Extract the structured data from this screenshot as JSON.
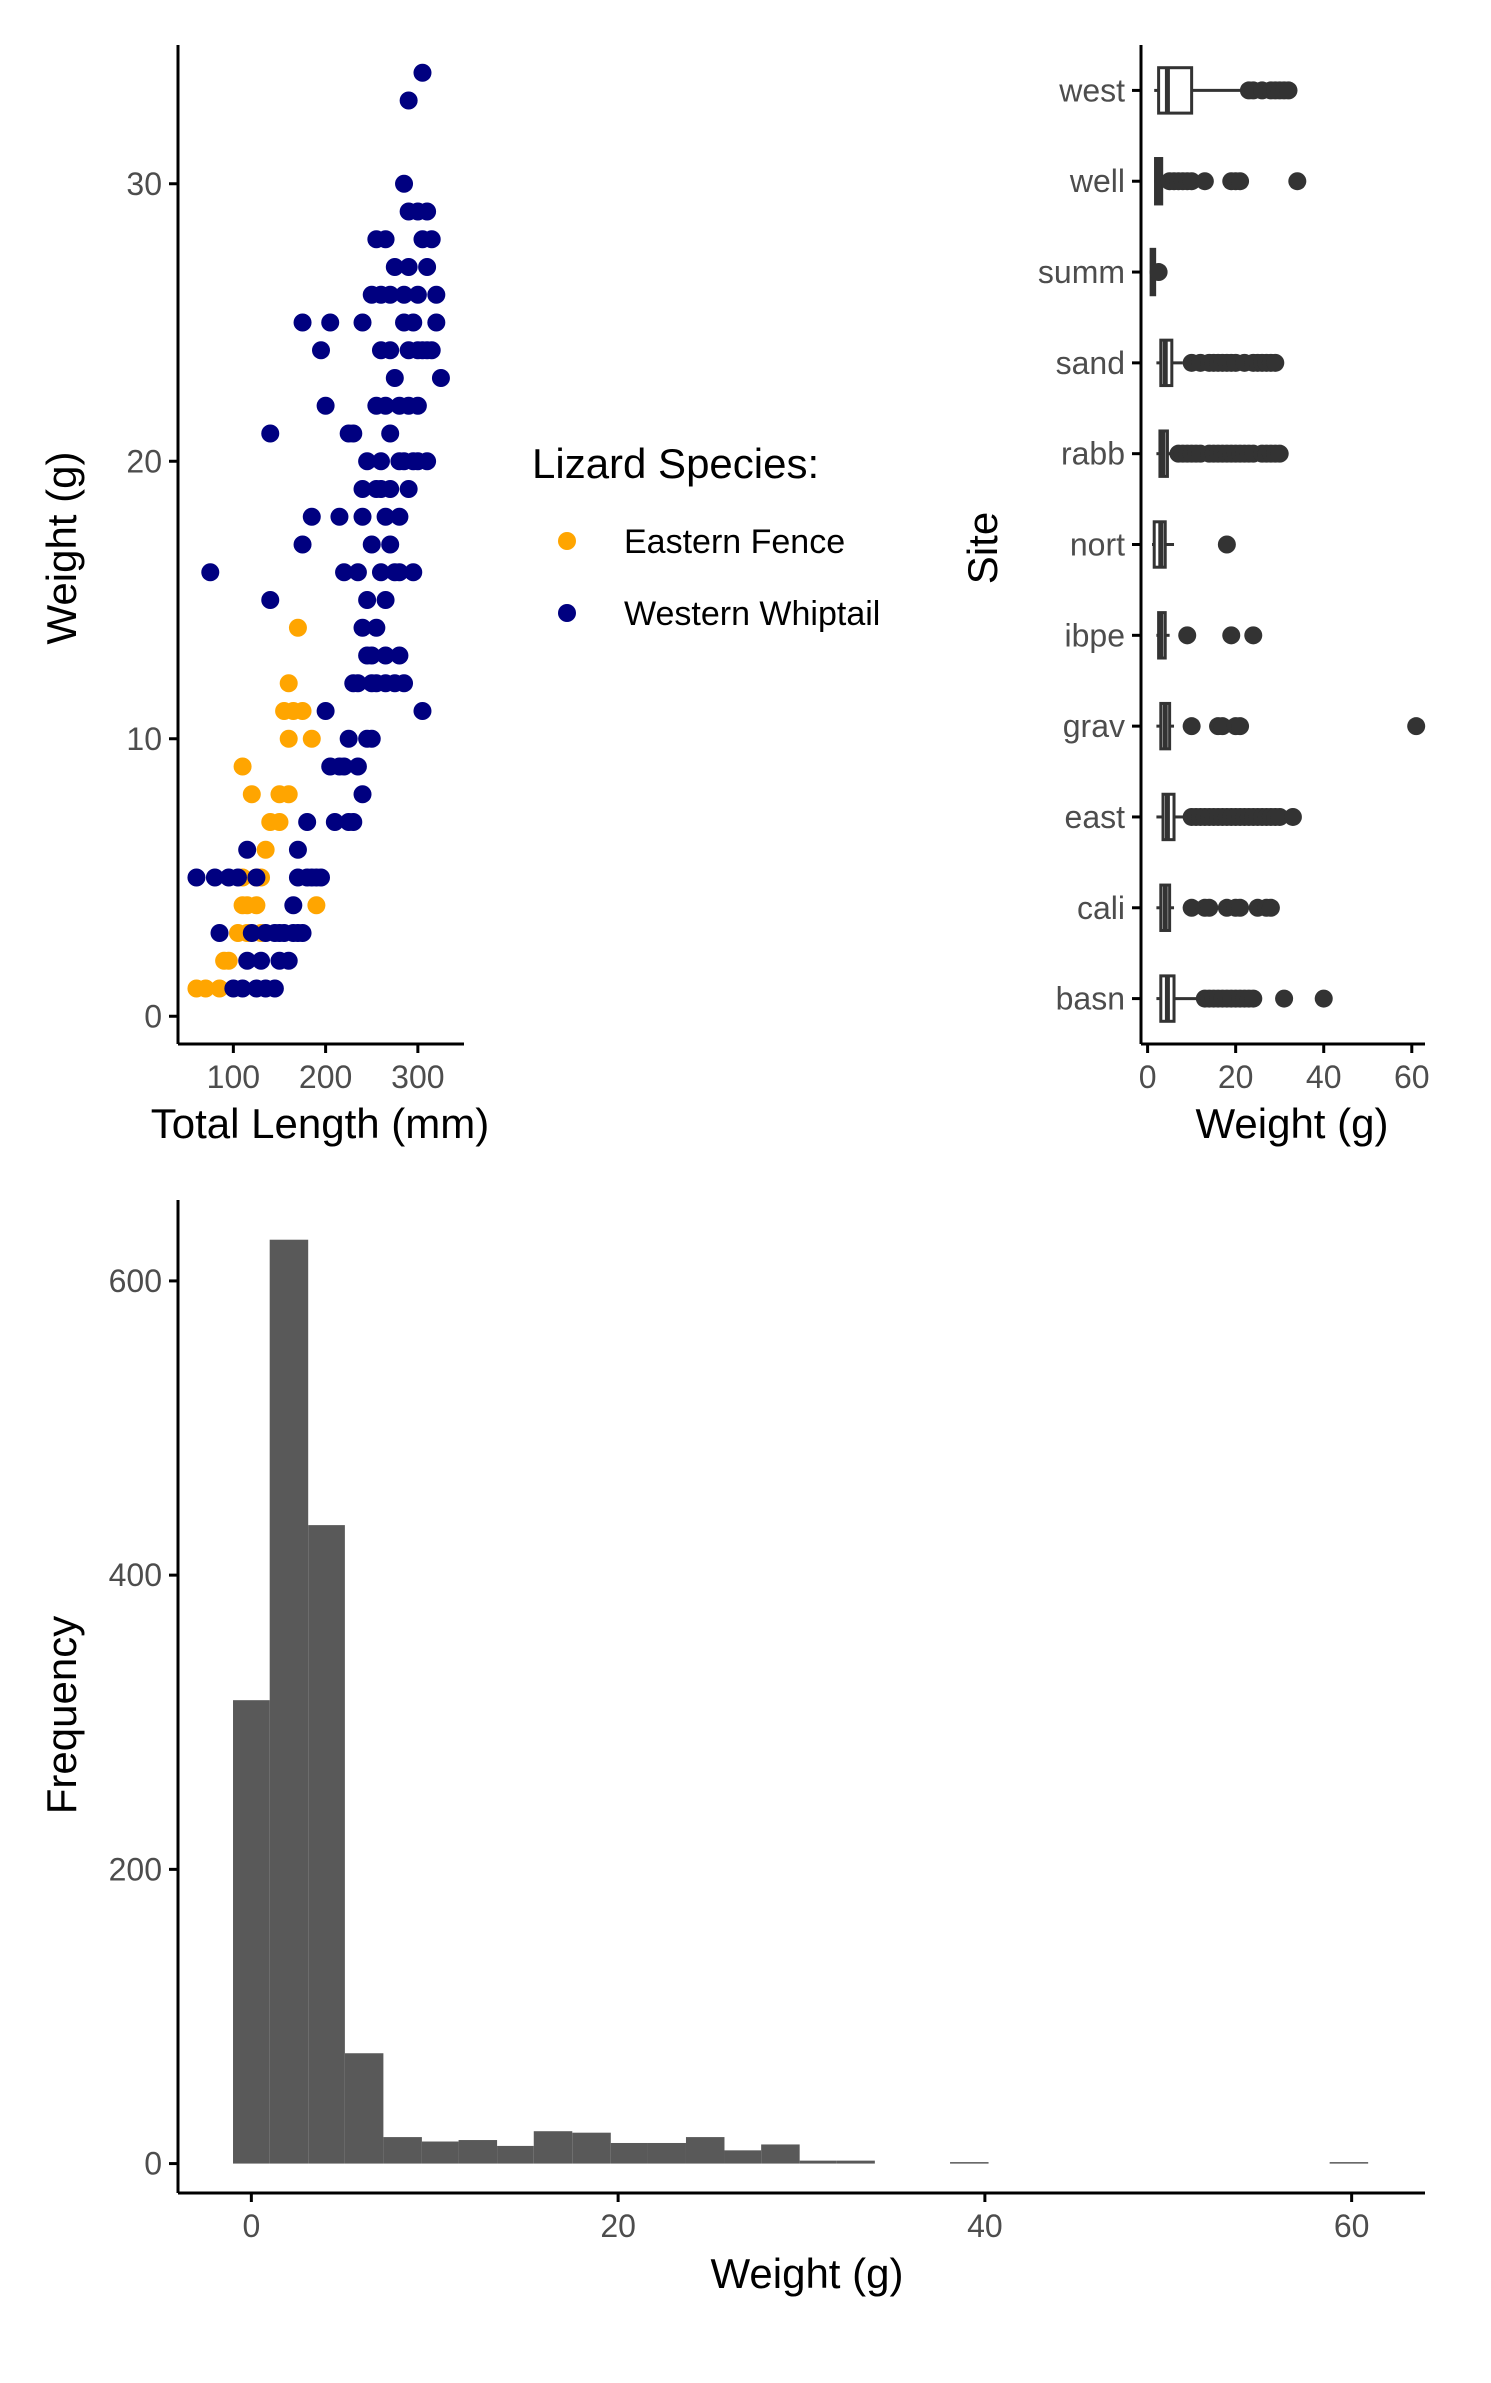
{
  "colors": {
    "eastern_fence": "#FFA500",
    "western_whiptail": "#000080",
    "box": "#333333",
    "bar": "#595959",
    "axis": "#000000",
    "tick_label": "#4d4d4d"
  },
  "chart_data": [
    {
      "type": "scatter",
      "xlabel": "Total Length (mm)",
      "ylabel": "Weight (g)",
      "xlim": [
        40,
        350
      ],
      "ylim": [
        -1,
        35
      ],
      "x_ticks": [
        100,
        200,
        300
      ],
      "y_ticks": [
        0,
        10,
        20,
        30
      ],
      "grid": false,
      "legend": {
        "title": "Lizard Species:",
        "position": "right",
        "entries": [
          "Eastern Fence",
          "Western Whiptail"
        ]
      },
      "series": [
        {
          "name": "Eastern Fence",
          "points": [
            [
              60,
              1
            ],
            [
              70,
              1
            ],
            [
              85,
              1
            ],
            [
              90,
              2
            ],
            [
              95,
              2
            ],
            [
              105,
              3
            ],
            [
              110,
              5
            ],
            [
              115,
              4
            ],
            [
              120,
              8
            ],
            [
              125,
              4
            ],
            [
              130,
              5
            ],
            [
              135,
              6
            ],
            [
              140,
              7
            ],
            [
              150,
              7
            ],
            [
              155,
              11
            ],
            [
              160,
              12
            ],
            [
              165,
              11
            ],
            [
              170,
              14
            ],
            [
              175,
              11
            ],
            [
              185,
              10
            ],
            [
              190,
              4
            ],
            [
              110,
              9
            ],
            [
              115,
              3
            ],
            [
              130,
              3
            ],
            [
              150,
              8
            ],
            [
              160,
              8
            ],
            [
              160,
              10
            ],
            [
              110,
              4
            ],
            [
              125,
              5
            ]
          ]
        },
        {
          "name": "Western Whiptail",
          "points": [
            [
              60,
              5
            ],
            [
              75,
              16
            ],
            [
              80,
              5
            ],
            [
              85,
              3
            ],
            [
              95,
              5
            ],
            [
              100,
              1
            ],
            [
              105,
              5
            ],
            [
              110,
              1
            ],
            [
              115,
              2
            ],
            [
              115,
              6
            ],
            [
              120,
              3
            ],
            [
              125,
              1
            ],
            [
              125,
              5
            ],
            [
              130,
              2
            ],
            [
              135,
              1
            ],
            [
              135,
              3
            ],
            [
              140,
              15
            ],
            [
              140,
              21
            ],
            [
              145,
              3
            ],
            [
              145,
              1
            ],
            [
              150,
              2
            ],
            [
              150,
              3
            ],
            [
              155,
              3
            ],
            [
              160,
              2
            ],
            [
              165,
              3
            ],
            [
              165,
              4
            ],
            [
              170,
              3
            ],
            [
              170,
              5
            ],
            [
              170,
              6
            ],
            [
              175,
              25
            ],
            [
              175,
              17
            ],
            [
              175,
              3
            ],
            [
              180,
              5
            ],
            [
              180,
              7
            ],
            [
              185,
              18
            ],
            [
              185,
              5
            ],
            [
              190,
              5
            ],
            [
              195,
              24
            ],
            [
              195,
              5
            ],
            [
              200,
              11
            ],
            [
              200,
              22
            ],
            [
              205,
              25
            ],
            [
              205,
              9
            ],
            [
              210,
              7
            ],
            [
              215,
              9
            ],
            [
              215,
              18
            ],
            [
              220,
              16
            ],
            [
              220,
              9
            ],
            [
              225,
              10
            ],
            [
              225,
              7
            ],
            [
              225,
              21
            ],
            [
              230,
              12
            ],
            [
              230,
              7
            ],
            [
              230,
              21
            ],
            [
              235,
              12
            ],
            [
              235,
              16
            ],
            [
              235,
              9
            ],
            [
              240,
              25
            ],
            [
              240,
              14
            ],
            [
              240,
              8
            ],
            [
              240,
              18
            ],
            [
              240,
              19
            ],
            [
              245,
              20
            ],
            [
              245,
              13
            ],
            [
              245,
              15
            ],
            [
              245,
              10
            ],
            [
              250,
              12
            ],
            [
              250,
              26
            ],
            [
              250,
              17
            ],
            [
              250,
              13
            ],
            [
              250,
              10
            ],
            [
              255,
              22
            ],
            [
              255,
              14
            ],
            [
              255,
              12
            ],
            [
              255,
              19
            ],
            [
              255,
              28
            ],
            [
              260,
              26
            ],
            [
              260,
              24
            ],
            [
              260,
              16
            ],
            [
              260,
              20
            ],
            [
              260,
              19
            ],
            [
              265,
              18
            ],
            [
              265,
              12
            ],
            [
              265,
              13
            ],
            [
              265,
              15
            ],
            [
              265,
              22
            ],
            [
              265,
              28
            ],
            [
              270,
              26
            ],
            [
              270,
              24
            ],
            [
              270,
              21
            ],
            [
              270,
              17
            ],
            [
              270,
              19
            ],
            [
              275,
              23
            ],
            [
              275,
              27
            ],
            [
              275,
              16
            ],
            [
              275,
              12
            ],
            [
              280,
              22
            ],
            [
              280,
              20
            ],
            [
              280,
              13
            ],
            [
              280,
              16
            ],
            [
              280,
              18
            ],
            [
              285,
              30
            ],
            [
              285,
              25
            ],
            [
              285,
              26
            ],
            [
              285,
              20
            ],
            [
              285,
              12
            ],
            [
              290,
              33
            ],
            [
              290,
              29
            ],
            [
              290,
              27
            ],
            [
              290,
              24
            ],
            [
              290,
              22
            ],
            [
              290,
              19
            ],
            [
              295,
              25
            ],
            [
              295,
              20
            ],
            [
              295,
              16
            ],
            [
              300,
              29
            ],
            [
              300,
              26
            ],
            [
              300,
              22
            ],
            [
              300,
              24
            ],
            [
              300,
              20
            ],
            [
              305,
              34
            ],
            [
              305,
              28
            ],
            [
              305,
              24
            ],
            [
              305,
              11
            ],
            [
              310,
              29
            ],
            [
              310,
              27
            ],
            [
              310,
              24
            ],
            [
              310,
              20
            ],
            [
              315,
              28
            ],
            [
              315,
              24
            ],
            [
              320,
              25
            ],
            [
              320,
              26
            ],
            [
              325,
              23
            ]
          ]
        }
      ]
    },
    {
      "type": "box",
      "orientation": "horizontal",
      "xlabel": "Weight (g)",
      "ylabel": "Site",
      "xlim": [
        -1.5,
        63
      ],
      "x_ticks": [
        0,
        20,
        40,
        60
      ],
      "grid": false,
      "categories": [
        "west",
        "well",
        "summ",
        "sand",
        "rabb",
        "nort",
        "ibpe",
        "grav",
        "east",
        "cali",
        "basn"
      ],
      "boxes": [
        {
          "site": "west",
          "min": 1.5,
          "q1": 2.5,
          "median": 4.5,
          "q3": 10,
          "max": 22,
          "outliers": [
            23,
            24,
            26,
            28,
            29,
            30,
            31,
            32
          ]
        },
        {
          "site": "well",
          "min": 1.5,
          "q1": 1.8,
          "median": 2.5,
          "q3": 3.2,
          "max": 4,
          "outliers": [
            5,
            6,
            7,
            8,
            9,
            10,
            13,
            19,
            20,
            21,
            34
          ]
        },
        {
          "site": "summ",
          "min": 0.5,
          "q1": 0.8,
          "median": 1.2,
          "q3": 1.6,
          "max": 2,
          "outliers": [
            2.5
          ]
        },
        {
          "site": "sand",
          "min": 2,
          "q1": 3,
          "median": 4,
          "q3": 5.5,
          "max": 8,
          "outliers": [
            10,
            12,
            14,
            15,
            16,
            17,
            18,
            19,
            20,
            22,
            24,
            25,
            26,
            27,
            28,
            29
          ]
        },
        {
          "site": "rabb",
          "min": 2,
          "q1": 2.8,
          "median": 3.5,
          "q3": 4.5,
          "max": 6,
          "outliers": [
            7,
            8,
            9,
            10,
            11,
            12,
            14,
            15,
            16,
            17,
            18,
            19,
            20,
            21,
            22,
            23,
            24,
            26,
            27,
            28,
            29,
            30
          ]
        },
        {
          "site": "nort",
          "min": 1,
          "q1": 1.5,
          "median": 3,
          "q3": 4,
          "max": 6,
          "outliers": [
            18
          ]
        },
        {
          "site": "ibpe",
          "min": 2,
          "q1": 2.5,
          "median": 3,
          "q3": 4,
          "max": 5,
          "outliers": [
            9,
            19,
            24
          ]
        },
        {
          "site": "grav",
          "min": 2,
          "q1": 3,
          "median": 4,
          "q3": 5,
          "max": 6,
          "outliers": [
            10,
            16,
            17,
            20,
            21,
            61
          ]
        },
        {
          "site": "east",
          "min": 2,
          "q1": 3.5,
          "median": 4.5,
          "q3": 6,
          "max": 9,
          "outliers": [
            10,
            11,
            12,
            13,
            14,
            15,
            16,
            17,
            18,
            19,
            20,
            21,
            22,
            23,
            24,
            25,
            26,
            27,
            28,
            29,
            30,
            33
          ]
        },
        {
          "site": "cali",
          "min": 2,
          "q1": 3,
          "median": 4,
          "q3": 5,
          "max": 6,
          "outliers": [
            10,
            13,
            14,
            18,
            20,
            21,
            25,
            27,
            28
          ]
        },
        {
          "site": "basn",
          "min": 2,
          "q1": 3,
          "median": 4.5,
          "q3": 6,
          "max": 12,
          "outliers": [
            13,
            14,
            15,
            16,
            17,
            18,
            19,
            20,
            21,
            22,
            23,
            24,
            31,
            40
          ]
        }
      ]
    },
    {
      "type": "bar",
      "subtype": "histogram",
      "xlabel": "Weight (g)",
      "ylabel": "Frequency",
      "xlim": [
        -4,
        64
      ],
      "ylim": [
        -20,
        655
      ],
      "x_ticks": [
        0,
        20,
        40,
        60
      ],
      "y_ticks": [
        0,
        200,
        400,
        600
      ],
      "grid": false,
      "bins": [
        {
          "x0": -1.0,
          "x1": 1.0,
          "count": 315
        },
        {
          "x0": 1.0,
          "x1": 3.1,
          "count": 628
        },
        {
          "x0": 3.1,
          "x1": 5.1,
          "count": 434
        },
        {
          "x0": 5.1,
          "x1": 7.2,
          "count": 75
        },
        {
          "x0": 7.2,
          "x1": 9.3,
          "count": 18
        },
        {
          "x0": 9.3,
          "x1": 11.3,
          "count": 15
        },
        {
          "x0": 11.3,
          "x1": 13.4,
          "count": 16
        },
        {
          "x0": 13.4,
          "x1": 15.4,
          "count": 12
        },
        {
          "x0": 15.4,
          "x1": 17.5,
          "count": 22
        },
        {
          "x0": 17.5,
          "x1": 19.6,
          "count": 21
        },
        {
          "x0": 19.6,
          "x1": 21.6,
          "count": 14
        },
        {
          "x0": 21.6,
          "x1": 23.7,
          "count": 14
        },
        {
          "x0": 23.7,
          "x1": 25.8,
          "count": 18
        },
        {
          "x0": 25.8,
          "x1": 27.8,
          "count": 9
        },
        {
          "x0": 27.8,
          "x1": 29.9,
          "count": 13
        },
        {
          "x0": 29.9,
          "x1": 31.9,
          "count": 2
        },
        {
          "x0": 31.9,
          "x1": 34.0,
          "count": 2
        },
        {
          "x0": 38.1,
          "x1": 40.2,
          "count": 1
        },
        {
          "x0": 58.8,
          "x1": 60.9,
          "count": 1
        }
      ]
    }
  ]
}
